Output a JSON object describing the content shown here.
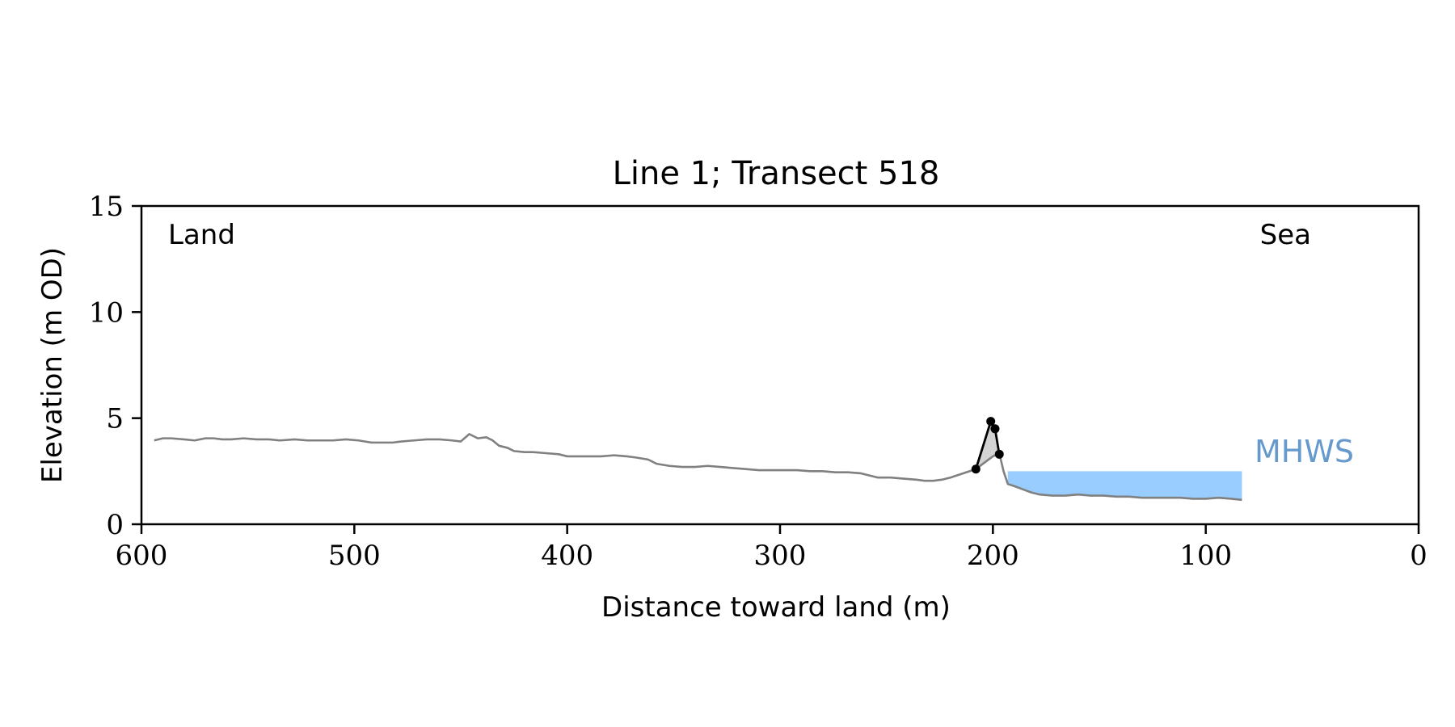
{
  "chart_data": {
    "type": "line",
    "title": "Line 1; Transect 518",
    "xlabel": "Distance toward land (m)",
    "ylabel": "Elevation (m OD)",
    "xlim": [
      600,
      0
    ],
    "ylim": [
      0,
      15
    ],
    "x_ticks": [
      600,
      500,
      400,
      300,
      200,
      100,
      0
    ],
    "y_ticks": [
      0,
      5,
      10,
      15
    ],
    "x_tick_labels": [
      "600",
      "500",
      "400",
      "300",
      "200",
      "100",
      "0"
    ],
    "y_tick_labels": [
      "0",
      "5",
      "10",
      "15"
    ],
    "grid": false,
    "annotations": {
      "land": "Land",
      "sea": "Sea",
      "mhws": "MHWS"
    },
    "mhws": {
      "level": 2.5,
      "x_range": [
        193,
        83
      ]
    },
    "series": [
      {
        "role": "profile",
        "color": "#808080",
        "x": [
          594,
          590,
          586,
          580,
          575,
          570,
          566,
          562,
          558,
          552,
          546,
          540,
          535,
          528,
          522,
          516,
          510,
          504,
          498,
          492,
          486,
          482,
          478,
          472,
          466,
          460,
          454,
          450,
          446,
          442,
          438,
          435,
          432,
          428,
          425,
          420,
          416,
          410,
          404,
          400,
          396,
          390,
          384,
          378,
          372,
          368,
          362,
          358,
          352,
          346,
          340,
          334,
          328,
          322,
          316,
          310,
          304,
          298,
          292,
          286,
          280,
          274,
          268,
          262,
          258,
          254,
          248,
          242,
          236,
          232,
          228,
          224,
          220,
          214,
          208,
          204,
          200,
          197,
          195,
          193,
          190,
          186,
          182,
          178,
          172,
          166,
          160,
          154,
          148,
          142,
          136,
          130,
          124,
          118,
          112,
          106,
          100,
          94,
          88,
          83
        ],
        "y": [
          3.95,
          4.05,
          4.05,
          4.0,
          3.95,
          4.05,
          4.05,
          4.0,
          4.0,
          4.05,
          4.0,
          4.0,
          3.95,
          4.0,
          3.95,
          3.95,
          3.95,
          4.0,
          3.95,
          3.85,
          3.85,
          3.85,
          3.9,
          3.95,
          4.0,
          4.0,
          3.95,
          3.9,
          4.25,
          4.05,
          4.1,
          3.95,
          3.7,
          3.6,
          3.45,
          3.4,
          3.4,
          3.35,
          3.3,
          3.2,
          3.2,
          3.2,
          3.2,
          3.25,
          3.2,
          3.15,
          3.05,
          2.85,
          2.75,
          2.7,
          2.7,
          2.75,
          2.7,
          2.65,
          2.6,
          2.55,
          2.55,
          2.55,
          2.55,
          2.5,
          2.5,
          2.45,
          2.45,
          2.4,
          2.3,
          2.2,
          2.2,
          2.15,
          2.1,
          2.05,
          2.05,
          2.1,
          2.2,
          2.4,
          2.6,
          2.9,
          3.2,
          3.35,
          2.5,
          1.9,
          1.8,
          1.65,
          1.5,
          1.4,
          1.35,
          1.35,
          1.4,
          1.35,
          1.35,
          1.3,
          1.3,
          1.25,
          1.25,
          1.25,
          1.25,
          1.2,
          1.2,
          1.25,
          1.2,
          1.15
        ]
      },
      {
        "role": "dune",
        "color": "#000000",
        "x": [
          208,
          201,
          199,
          197
        ],
        "y": [
          2.6,
          4.85,
          4.5,
          3.3
        ]
      }
    ]
  }
}
